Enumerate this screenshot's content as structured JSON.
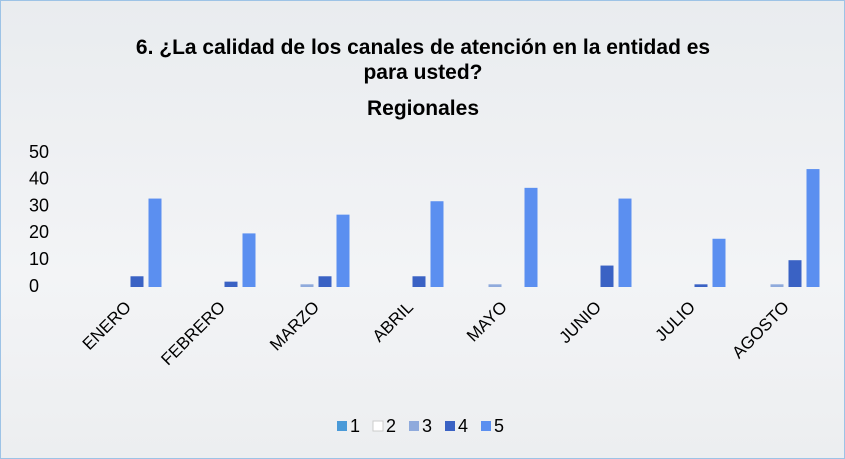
{
  "chart_data": {
    "type": "bar",
    "title": "6. ¿La calidad de los canales de atención en la entidad es para usted?",
    "subtitle": "Regionales",
    "categories": [
      "ENERO",
      "FEBRERO",
      "MARZO",
      "ABRIL",
      "MAYO",
      "JUNIO",
      "JULIO",
      "AGOSTO"
    ],
    "series": [
      {
        "name": "1",
        "color": "#4a9ad8",
        "values": [
          0,
          0,
          0,
          0,
          0,
          0,
          0,
          0
        ]
      },
      {
        "name": "2",
        "color": "#ffffff",
        "values": [
          0,
          0,
          0,
          0,
          0,
          0,
          0,
          0
        ]
      },
      {
        "name": "3",
        "color": "#8faadc",
        "values": [
          0,
          0,
          1,
          0,
          1,
          0,
          0,
          1
        ]
      },
      {
        "name": "4",
        "color": "#3a62c4",
        "values": [
          4,
          2,
          4,
          4,
          0,
          8,
          1,
          10
        ]
      },
      {
        "name": "5",
        "color": "#5b8ff0",
        "values": [
          33,
          20,
          27,
          32,
          37,
          33,
          18,
          44
        ]
      }
    ],
    "ylim": [
      0,
      50
    ],
    "yticks": [
      0,
      10,
      20,
      30,
      40,
      50
    ],
    "grid": false,
    "legend": "bottom"
  }
}
